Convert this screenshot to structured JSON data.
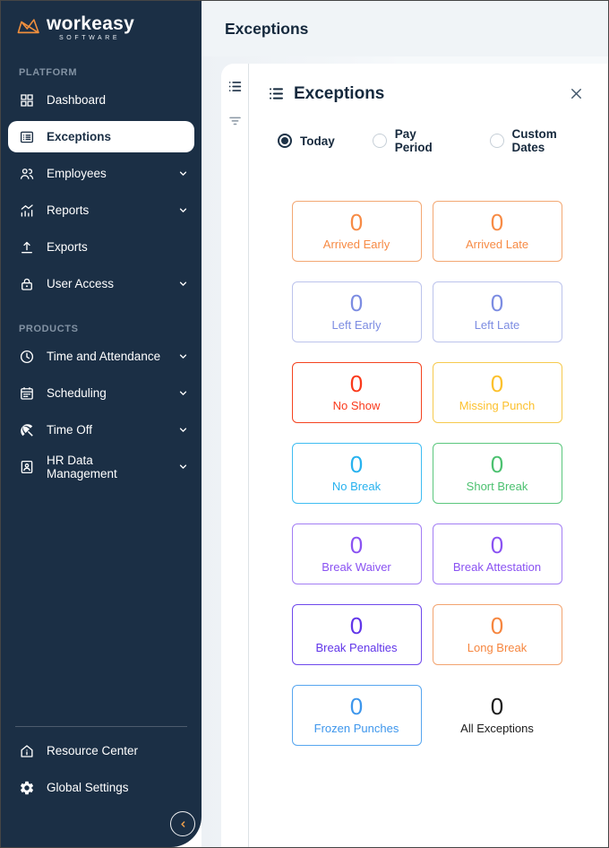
{
  "app": {
    "logo": {
      "text": "workeasy",
      "subtext": "SOFTWARE",
      "accent": "#f08f3d"
    }
  },
  "sidebar": {
    "sections": [
      {
        "label": "PLATFORM",
        "items": [
          {
            "label": "Dashboard",
            "icon": "dashboard-grid-icon",
            "active": false,
            "expandable": false
          },
          {
            "label": "Exceptions",
            "icon": "list-alt-icon",
            "active": true,
            "expandable": false
          },
          {
            "label": "Employees",
            "icon": "people-icon",
            "active": false,
            "expandable": true
          },
          {
            "label": "Reports",
            "icon": "chart-icon",
            "active": false,
            "expandable": true
          },
          {
            "label": "Exports",
            "icon": "upload-icon",
            "active": false,
            "expandable": false
          },
          {
            "label": "User Access",
            "icon": "lock-icon",
            "active": false,
            "expandable": true
          }
        ]
      },
      {
        "label": "PRODUCTS",
        "items": [
          {
            "label": "Time and Attendance",
            "icon": "clock-icon",
            "active": false,
            "expandable": true
          },
          {
            "label": "Scheduling",
            "icon": "calendar-icon",
            "active": false,
            "expandable": true
          },
          {
            "label": "Time Off",
            "icon": "umbrella-icon",
            "active": false,
            "expandable": true
          },
          {
            "label": "HR Data Management",
            "icon": "person-document-icon",
            "active": false,
            "expandable": true
          }
        ]
      }
    ],
    "footer": [
      {
        "label": "Resource Center",
        "icon": "home-info-icon"
      },
      {
        "label": "Global Settings",
        "icon": "gear-icon"
      }
    ],
    "colors": {
      "background": "#1b2f45",
      "section_label": "#8292a3",
      "collapse_chevron": "#f0a14c"
    }
  },
  "header": {
    "title": "Exceptions"
  },
  "panel": {
    "title": "Exceptions",
    "date_filters": [
      {
        "label": "Today",
        "selected": true
      },
      {
        "label": "Pay Period",
        "selected": false
      },
      {
        "label": "Custom Dates",
        "selected": false
      }
    ],
    "cards": [
      {
        "label": "Arrived Early",
        "value": "0",
        "color": "#f78b45",
        "border": "#f3a873",
        "bordered": true
      },
      {
        "label": "Arrived Late",
        "value": "0",
        "color": "#f78b45",
        "border": "#f3a873",
        "bordered": true
      },
      {
        "label": "Left Early",
        "value": "0",
        "color": "#7c8ce2",
        "border": "#bcc3ec",
        "bordered": true
      },
      {
        "label": "Left Late",
        "value": "0",
        "color": "#7c8ce2",
        "border": "#bcc3ec",
        "bordered": true
      },
      {
        "label": "No Show",
        "value": "0",
        "color": "#fa391b",
        "border": "#f4431f",
        "bordered": true
      },
      {
        "label": "Missing Punch",
        "value": "0",
        "color": "#fcc12d",
        "border": "#f6ca4e",
        "bordered": true
      },
      {
        "label": "No Break",
        "value": "0",
        "color": "#27b2ef",
        "border": "#3fbdf2",
        "bordered": true
      },
      {
        "label": "Short Break",
        "value": "0",
        "color": "#4cc170",
        "border": "#5bc77d",
        "bordered": true
      },
      {
        "label": "Break Waiver",
        "value": "0",
        "color": "#8a52f2",
        "border": "#a37ef4",
        "bordered": true
      },
      {
        "label": "Break Attestation",
        "value": "0",
        "color": "#8a52f2",
        "border": "#a37ef4",
        "bordered": true
      },
      {
        "label": "Break Penalties",
        "value": "0",
        "color": "#6136e9",
        "border": "#6f49ec",
        "bordered": true
      },
      {
        "label": "Long Break",
        "value": "0",
        "color": "#f6863f",
        "border": "#f2a470",
        "bordered": true
      },
      {
        "label": "Frozen Punches",
        "value": "0",
        "color": "#3d96ec",
        "border": "#57a6ef",
        "bordered": true
      },
      {
        "label": "All Exceptions",
        "value": "0",
        "color": "#1c1c1c",
        "border": "",
        "bordered": false
      }
    ]
  }
}
